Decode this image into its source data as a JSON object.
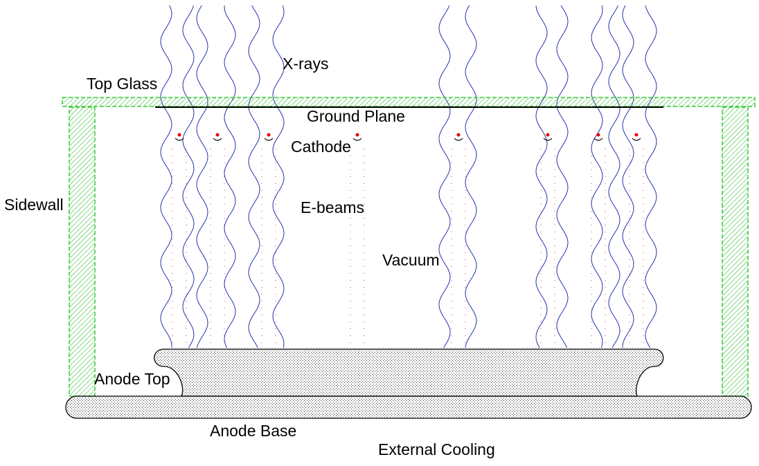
{
  "labels": {
    "x_rays": "X-rays",
    "top_glass": "Top Glass",
    "ground_plane": "Ground Plane",
    "cathode": "Cathode",
    "sidewall": "Sidewall",
    "e_beams": "E-beams",
    "vacuum": "Vacuum",
    "anode_top": "Anode Top",
    "anode_base": "Anode Base",
    "external_cooling": "External Cooling"
  }
}
